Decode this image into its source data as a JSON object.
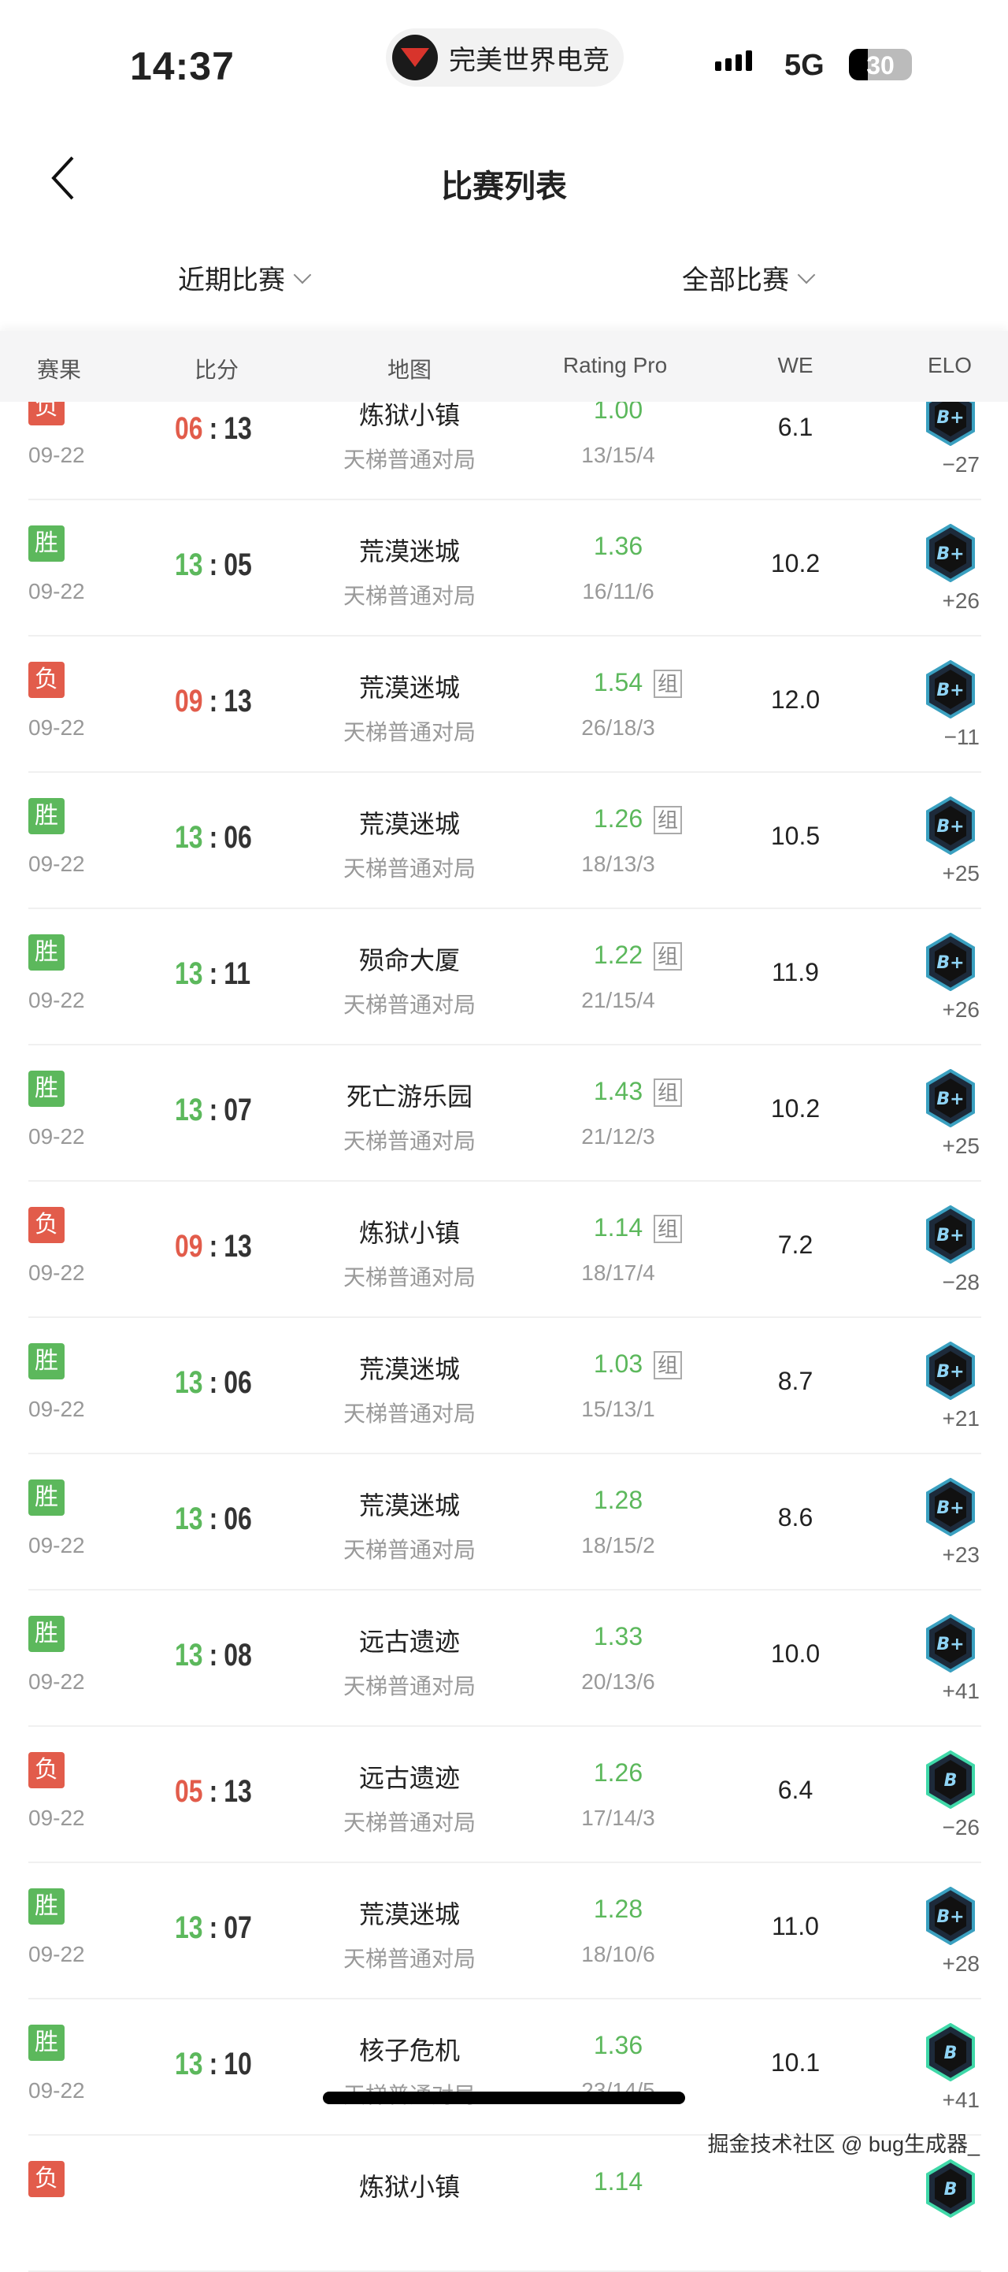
{
  "status_bar": {
    "time": "14:37",
    "app_pill": "完美世界电竞",
    "network": "5G",
    "battery": "30",
    "battery_level": 0.3
  },
  "nav": {
    "title": "比赛列表"
  },
  "filters": {
    "period": "近期比赛",
    "type": "全部比赛"
  },
  "columns": [
    "赛果",
    "比分",
    "地图",
    "Rating Pro",
    "WE",
    "ELO"
  ],
  "colors": {
    "win": "#5cb85c",
    "loss": "#e25c4b",
    "rating": "#5cb85c"
  },
  "matches": [
    {
      "result": "负",
      "date": "09-22",
      "score_a": "06",
      "score_b": "13",
      "map": "炼狱小镇",
      "mode": "天梯普通对局",
      "rating": "1.00",
      "group": false,
      "kda": "13/15/4",
      "we": "6.1",
      "rank": "B+",
      "elo_change": "−27"
    },
    {
      "result": "胜",
      "date": "09-22",
      "score_a": "13",
      "score_b": "05",
      "map": "荒漠迷城",
      "mode": "天梯普通对局",
      "rating": "1.36",
      "group": false,
      "kda": "16/11/6",
      "we": "10.2",
      "rank": "B+",
      "elo_change": "+26"
    },
    {
      "result": "负",
      "date": "09-22",
      "score_a": "09",
      "score_b": "13",
      "map": "荒漠迷城",
      "mode": "天梯普通对局",
      "rating": "1.54",
      "group": true,
      "kda": "26/18/3",
      "we": "12.0",
      "rank": "B+",
      "elo_change": "−11"
    },
    {
      "result": "胜",
      "date": "09-22",
      "score_a": "13",
      "score_b": "06",
      "map": "荒漠迷城",
      "mode": "天梯普通对局",
      "rating": "1.26",
      "group": true,
      "kda": "18/13/3",
      "we": "10.5",
      "rank": "B+",
      "elo_change": "+25"
    },
    {
      "result": "胜",
      "date": "09-22",
      "score_a": "13",
      "score_b": "11",
      "map": "殒命大厦",
      "mode": "天梯普通对局",
      "rating": "1.22",
      "group": true,
      "kda": "21/15/4",
      "we": "11.9",
      "rank": "B+",
      "elo_change": "+26"
    },
    {
      "result": "胜",
      "date": "09-22",
      "score_a": "13",
      "score_b": "07",
      "map": "死亡游乐园",
      "mode": "天梯普通对局",
      "rating": "1.43",
      "group": true,
      "kda": "21/12/3",
      "we": "10.2",
      "rank": "B+",
      "elo_change": "+25"
    },
    {
      "result": "负",
      "date": "09-22",
      "score_a": "09",
      "score_b": "13",
      "map": "炼狱小镇",
      "mode": "天梯普通对局",
      "rating": "1.14",
      "group": true,
      "kda": "18/17/4",
      "we": "7.2",
      "rank": "B+",
      "elo_change": "−28"
    },
    {
      "result": "胜",
      "date": "09-22",
      "score_a": "13",
      "score_b": "06",
      "map": "荒漠迷城",
      "mode": "天梯普通对局",
      "rating": "1.03",
      "group": true,
      "kda": "15/13/1",
      "we": "8.7",
      "rank": "B+",
      "elo_change": "+21"
    },
    {
      "result": "胜",
      "date": "09-22",
      "score_a": "13",
      "score_b": "06",
      "map": "荒漠迷城",
      "mode": "天梯普通对局",
      "rating": "1.28",
      "group": false,
      "kda": "18/15/2",
      "we": "8.6",
      "rank": "B+",
      "elo_change": "+23"
    },
    {
      "result": "胜",
      "date": "09-22",
      "score_a": "13",
      "score_b": "08",
      "map": "远古遗迹",
      "mode": "天梯普通对局",
      "rating": "1.33",
      "group": false,
      "kda": "20/13/6",
      "we": "10.0",
      "rank": "B+",
      "elo_change": "+41"
    },
    {
      "result": "负",
      "date": "09-22",
      "score_a": "05",
      "score_b": "13",
      "map": "远古遗迹",
      "mode": "天梯普通对局",
      "rating": "1.26",
      "group": false,
      "kda": "17/14/3",
      "we": "6.4",
      "rank": "B",
      "elo_change": "−26"
    },
    {
      "result": "胜",
      "date": "09-22",
      "score_a": "13",
      "score_b": "07",
      "map": "荒漠迷城",
      "mode": "天梯普通对局",
      "rating": "1.28",
      "group": false,
      "kda": "18/10/6",
      "we": "11.0",
      "rank": "B+",
      "elo_change": "+28"
    },
    {
      "result": "胜",
      "date": "09-22",
      "score_a": "13",
      "score_b": "10",
      "map": "核子危机",
      "mode": "天梯普通对局",
      "rating": "1.36",
      "group": false,
      "kda": "23/14/5",
      "we": "10.1",
      "rank": "B",
      "elo_change": "+41"
    },
    {
      "result": "负",
      "date": "",
      "score_a": "",
      "score_b": "",
      "map": "炼狱小镇",
      "mode": "",
      "rating": "1.14",
      "group": false,
      "kda": "",
      "we": "",
      "rank": "B",
      "elo_change": ""
    }
  ],
  "group_label": "组",
  "watermark": "掘金技术社区 @ bug生成器_"
}
